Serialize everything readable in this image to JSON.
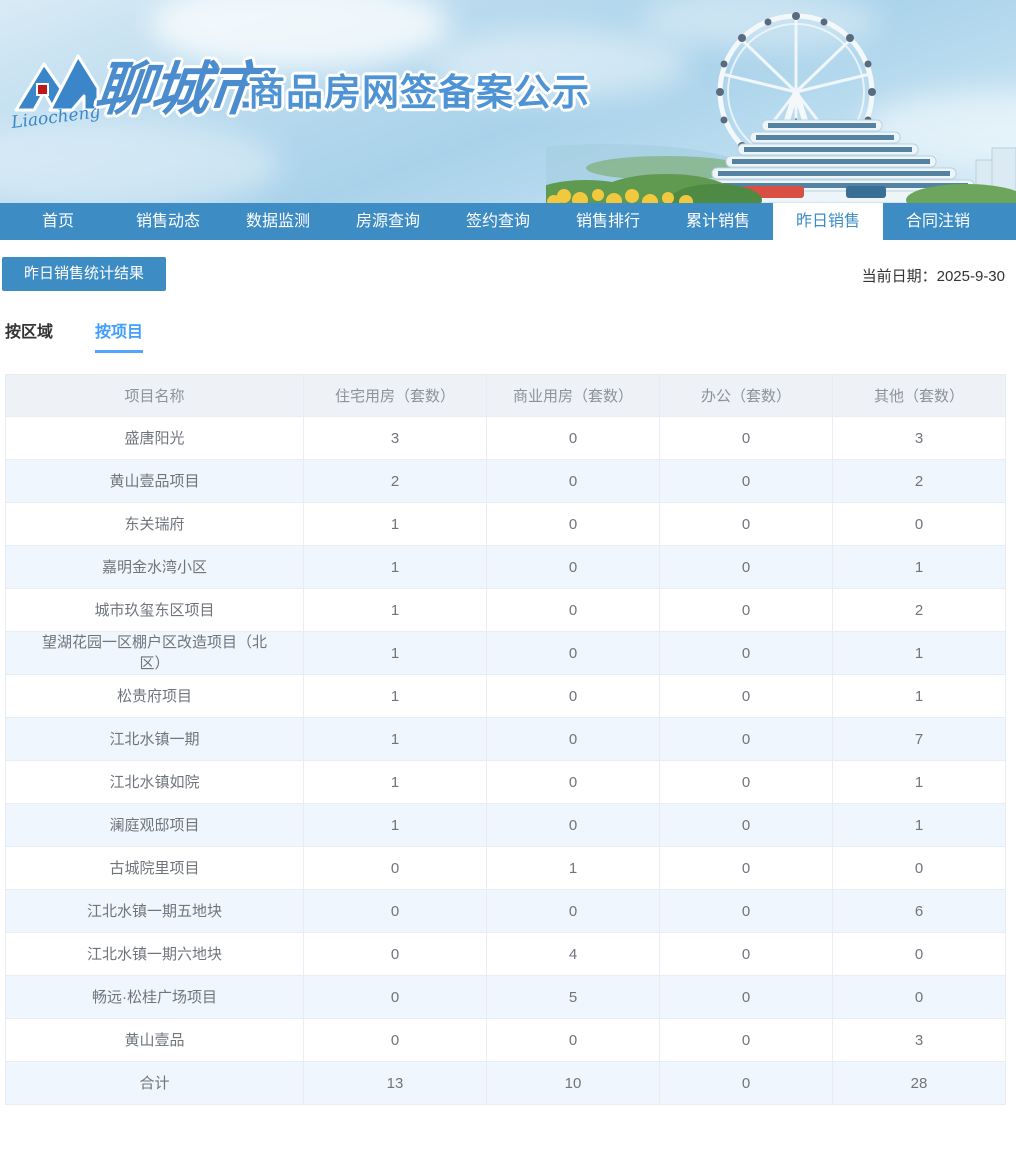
{
  "header": {
    "logo_script": "Liaocheng",
    "brand_cn": "聊城市",
    "brand_sub": "商品房网签备案公示"
  },
  "nav": {
    "items": [
      {
        "label": "首页",
        "active": false
      },
      {
        "label": "销售动态",
        "active": false
      },
      {
        "label": "数据监测",
        "active": false
      },
      {
        "label": "房源查询",
        "active": false
      },
      {
        "label": "签约查询",
        "active": false
      },
      {
        "label": "销售排行",
        "active": false
      },
      {
        "label": "累计销售",
        "active": false
      },
      {
        "label": "昨日销售",
        "active": true
      },
      {
        "label": "合同注销",
        "active": false
      }
    ]
  },
  "toolbar": {
    "result_button_label": "昨日销售统计结果",
    "current_date_label": "当前日期：",
    "current_date_value": "2025-9-30"
  },
  "subtabs": [
    {
      "label": "按区域",
      "active": false
    },
    {
      "label": "按项目",
      "active": true
    }
  ],
  "table": {
    "columns": [
      "项目名称",
      "住宅用房（套数）",
      "商业用房（套数）",
      "办公（套数）",
      "其他（套数）"
    ],
    "rows": [
      {
        "name": "盛唐阳光",
        "residential": "3",
        "commercial": "0",
        "office": "0",
        "other": "3"
      },
      {
        "name": "黄山壹品项目",
        "residential": "2",
        "commercial": "0",
        "office": "0",
        "other": "2"
      },
      {
        "name": "东关瑞府",
        "residential": "1",
        "commercial": "0",
        "office": "0",
        "other": "0"
      },
      {
        "name": "嘉明金水湾小区",
        "residential": "1",
        "commercial": "0",
        "office": "0",
        "other": "1"
      },
      {
        "name": "城市玖玺东区项目",
        "residential": "1",
        "commercial": "0",
        "office": "0",
        "other": "2"
      },
      {
        "name": "望湖花园一区棚户区改造项目（北区）",
        "residential": "1",
        "commercial": "0",
        "office": "0",
        "other": "1"
      },
      {
        "name": "松贵府项目",
        "residential": "1",
        "commercial": "0",
        "office": "0",
        "other": "1"
      },
      {
        "name": "江北水镇一期",
        "residential": "1",
        "commercial": "0",
        "office": "0",
        "other": "7"
      },
      {
        "name": "江北水镇如院",
        "residential": "1",
        "commercial": "0",
        "office": "0",
        "other": "1"
      },
      {
        "name": "澜庭观邸项目",
        "residential": "1",
        "commercial": "0",
        "office": "0",
        "other": "1"
      },
      {
        "name": "古城院里项目",
        "residential": "0",
        "commercial": "1",
        "office": "0",
        "other": "0"
      },
      {
        "name": "江北水镇一期五地块",
        "residential": "0",
        "commercial": "0",
        "office": "0",
        "other": "6"
      },
      {
        "name": "江北水镇一期六地块",
        "residential": "0",
        "commercial": "4",
        "office": "0",
        "other": "0"
      },
      {
        "name": "畅远·松桂广场项目",
        "residential": "0",
        "commercial": "5",
        "office": "0",
        "other": "0"
      },
      {
        "name": "黄山壹品",
        "residential": "0",
        "commercial": "0",
        "office": "0",
        "other": "3"
      },
      {
        "name": "合计",
        "residential": "13",
        "commercial": "10",
        "office": "0",
        "other": "28"
      }
    ]
  },
  "colors": {
    "nav_blue": "#3d8cc4",
    "subtab_active_blue": "#409eff",
    "table_header_bg": "#eef1f6",
    "table_alt_row_bg": "#eff6fd",
    "brand_blue": "#4a8ccd"
  }
}
